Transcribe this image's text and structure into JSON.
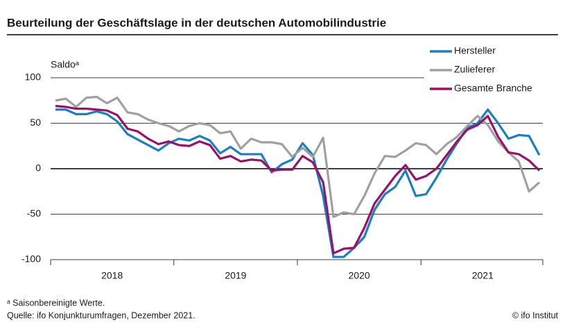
{
  "chart_data": {
    "type": "line",
    "title": "Beurteilung der Geschäftslage in der deutschen Automobilindustrie",
    "y_label": "Saldoᵃ",
    "years": [
      "2018",
      "2019",
      "2020",
      "2021"
    ],
    "ylim": [
      -100,
      100
    ],
    "yticks": [
      -100,
      -50,
      0,
      50,
      100
    ],
    "series": [
      {
        "name": "Hersteller",
        "color": "#1a7fc1",
        "values": [
          65,
          65,
          60,
          60,
          63,
          60,
          52,
          38,
          32,
          26,
          20,
          28,
          33,
          31,
          36,
          31,
          17,
          24,
          16,
          16,
          16,
          -4,
          5,
          10,
          28,
          15,
          -30,
          -97,
          -97,
          -87,
          -75,
          -45,
          -28,
          -20,
          -2,
          -30,
          -28,
          -10,
          10,
          28,
          45,
          50,
          65,
          50,
          33,
          37,
          36,
          15
        ]
      },
      {
        "name": "Zulieferer",
        "color": "#a0a0a0",
        "values": [
          75,
          77,
          68,
          78,
          79,
          72,
          78,
          62,
          60,
          54,
          50,
          47,
          41,
          47,
          50,
          48,
          39,
          41,
          22,
          33,
          29,
          29,
          27,
          13,
          23,
          13,
          34,
          -53,
          -48,
          -50,
          -30,
          -5,
          14,
          13,
          20,
          28,
          26,
          16,
          27,
          35,
          47,
          58,
          48,
          30,
          18,
          8,
          -25,
          -15
        ]
      },
      {
        "name": "Gesamte Branche",
        "color": "#9b1068",
        "values": [
          69,
          68,
          66,
          66,
          65,
          64,
          59,
          44,
          41,
          33,
          27,
          30,
          26,
          25,
          30,
          26,
          11,
          14,
          8,
          10,
          9,
          -2,
          -1,
          -1,
          14,
          7,
          -15,
          -93,
          -88,
          -87,
          -65,
          -38,
          -23,
          -8,
          4,
          -12,
          -8,
          0,
          15,
          30,
          43,
          48,
          58,
          35,
          18,
          16,
          9,
          -2
        ]
      }
    ],
    "footnote": "ᵃ Saisonbereinigte Werte.",
    "source": "Quelle: ifo Konjunkturumfragen, Dezember 2021.",
    "credit": "© ifo Institut"
  }
}
